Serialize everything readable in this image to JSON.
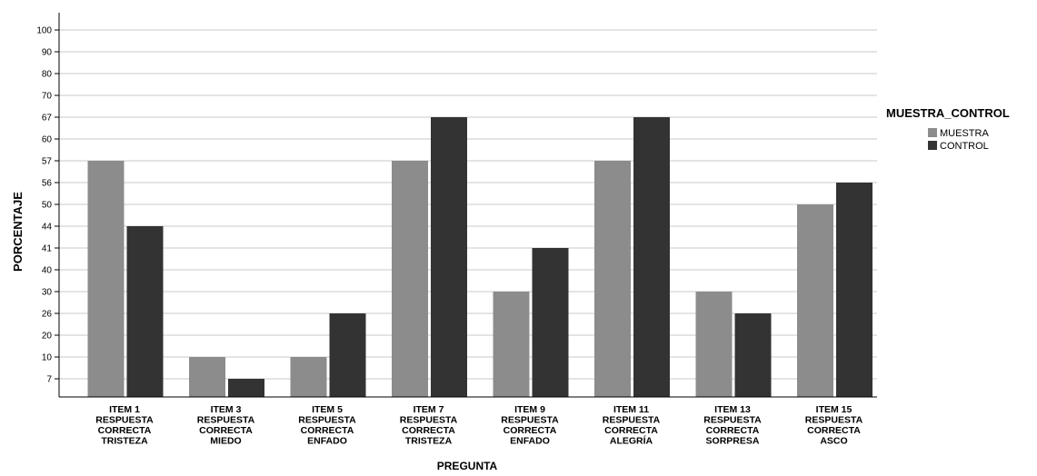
{
  "chart_data": {
    "type": "bar",
    "categories": [
      [
        "ITEM 1",
        "RESPUESTA",
        "CORRECTA",
        "TRISTEZA"
      ],
      [
        "ITEM 3",
        "RESPUESTA",
        "CORRECTA",
        "MIEDO"
      ],
      [
        "ITEM 5",
        "RESPUESTA",
        "CORRECTA",
        "ENFADO"
      ],
      [
        "ITEM 7",
        "RESPUESTA",
        "CORRECTA",
        "TRISTEZA"
      ],
      [
        "ITEM 9",
        "RESPUESTA",
        "CORRECTA",
        "ENFADO"
      ],
      [
        "ITEM 11",
        "RESPUESTA",
        "CORRECTA",
        "ALEGRÍA"
      ],
      [
        "ITEM 13",
        "RESPUESTA",
        "CORRECTA",
        "SORPRESA"
      ],
      [
        "ITEM 15",
        "RESPUESTA",
        "CORRECTA",
        "ASCO"
      ]
    ],
    "series": [
      {
        "name": "MUESTRA",
        "color": "#8c8c8c",
        "values": [
          57,
          10,
          10,
          57,
          30,
          57,
          30,
          50
        ]
      },
      {
        "name": "CONTROL",
        "color": "#333333",
        "values": [
          44,
          7,
          26,
          67,
          41,
          67,
          26,
          56
        ]
      }
    ],
    "xlabel": "PREGUNTA",
    "ylabel": "PORCENTAJE",
    "yticks": [
      "7",
      "10",
      "20",
      "26",
      "30",
      "40",
      "41",
      "44",
      "50",
      "56",
      "57",
      "60",
      "67",
      "70",
      "80",
      "90",
      "100"
    ],
    "ylim_note": "axis ticks are evenly spaced labels",
    "legend_title": "MUESTRA_CONTROL",
    "legend_position": "right",
    "grid": true
  }
}
